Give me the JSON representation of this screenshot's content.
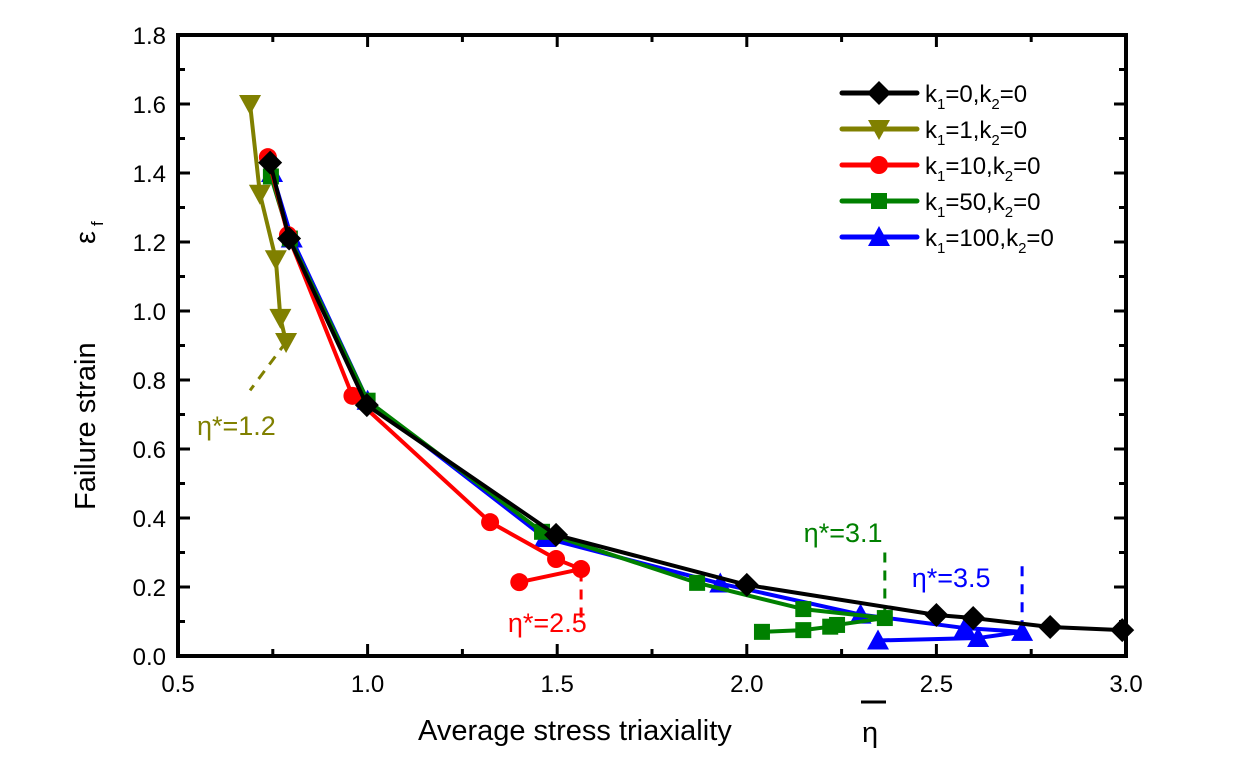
{
  "chart_data": {
    "type": "line",
    "title": "",
    "xlabel": "Average stress triaxiality",
    "xlabel_symbol": "η",
    "ylabel": "Failure strain",
    "ylabel_symbol": "ε",
    "ylabel_subscript": "f",
    "xlim": [
      0.5,
      3.0
    ],
    "ylim": [
      0.0,
      1.8
    ],
    "xticks": [
      0.5,
      1.0,
      1.5,
      2.0,
      2.5,
      3.0
    ],
    "xtick_labels": [
      "0.5",
      "1.0",
      "1.5",
      "2.0",
      "2.5",
      "3.0"
    ],
    "yticks": [
      0.0,
      0.2,
      0.4,
      0.6,
      0.8,
      1.0,
      1.2,
      1.4,
      1.6,
      1.8
    ],
    "ytick_labels": [
      "0.0",
      "0.2",
      "0.4",
      "0.6",
      "0.8",
      "1.0",
      "1.2",
      "1.4",
      "1.6",
      "1.8"
    ],
    "grid": false,
    "legend_position": "top-right",
    "series": [
      {
        "name": "k1=0,k2=0",
        "label_parts": [
          "k",
          "1",
          "=0,k",
          "2",
          "=0"
        ],
        "color": "#000000",
        "marker": "diamond",
        "x": [
          0.743,
          0.793,
          0.998,
          1.497,
          2.0,
          2.5,
          2.597,
          2.8,
          2.99
        ],
        "y": [
          1.43,
          1.21,
          0.727,
          0.351,
          0.206,
          0.119,
          0.11,
          0.084,
          0.075
        ]
      },
      {
        "name": "k1=1,k2=0",
        "label_parts": [
          "k",
          "1",
          "=1,k",
          "2",
          "=0"
        ],
        "color": "#808000",
        "marker": "triangle-down",
        "x": [
          0.69,
          0.716,
          0.758,
          0.77,
          0.785
        ],
        "y": [
          1.6,
          1.34,
          1.15,
          0.98,
          0.91
        ]
      },
      {
        "name": "k1=10,k2=0",
        "label_parts": [
          "k",
          "1",
          "=10,k",
          "2",
          "=0"
        ],
        "color": "#ff0000",
        "marker": "circle",
        "x": [
          0.737,
          0.79,
          0.96,
          1.323,
          1.497,
          1.563,
          1.4
        ],
        "y": [
          1.446,
          1.22,
          0.754,
          0.388,
          0.281,
          0.252,
          0.214
        ]
      },
      {
        "name": "k1=50,k2=0",
        "label_parts": [
          "k",
          "1",
          "=50,k",
          "2",
          "=0"
        ],
        "color": "#008000",
        "marker": "square",
        "x": [
          0.745,
          0.795,
          1.0,
          1.46,
          1.869,
          2.149,
          2.364,
          2.238,
          2.22,
          2.149,
          2.04
        ],
        "y": [
          1.39,
          1.21,
          0.74,
          0.36,
          0.212,
          0.136,
          0.11,
          0.09,
          0.085,
          0.075,
          0.07
        ]
      },
      {
        "name": "k1=100,k2=0",
        "label_parts": [
          "k",
          "1",
          "=100,k",
          "2",
          "=0"
        ],
        "color": "#0000ff",
        "marker": "triangle-up",
        "x": [
          0.748,
          0.8,
          1.0,
          1.468,
          1.93,
          2.3,
          2.575,
          2.726,
          2.61,
          2.346
        ],
        "y": [
          1.4,
          1.21,
          0.74,
          0.342,
          0.21,
          0.12,
          0.081,
          0.07,
          0.052,
          0.045
        ]
      }
    ],
    "annotations": [
      {
        "text_main": "η*=1.2",
        "color": "#808000",
        "x": 0.55,
        "y": 0.64,
        "line": [
          [
            0.785,
            0.91
          ],
          [
            0.69,
            0.77
          ]
        ]
      },
      {
        "text_main": "η*=2.5",
        "color": "#ff0000",
        "x": 1.37,
        "y": 0.07,
        "line": [
          [
            1.563,
            0.245
          ],
          [
            1.563,
            0.09
          ]
        ]
      },
      {
        "text_main": "η*=3.1",
        "color": "#008000",
        "x": 2.15,
        "y": 0.33,
        "line": [
          [
            2.364,
            0.3
          ],
          [
            2.364,
            0.11
          ]
        ]
      },
      {
        "text_main": "η*=3.5",
        "color": "#0000ff",
        "x": 2.435,
        "y": 0.2,
        "line": [
          [
            2.726,
            0.26
          ],
          [
            2.726,
            0.075
          ]
        ]
      }
    ]
  }
}
